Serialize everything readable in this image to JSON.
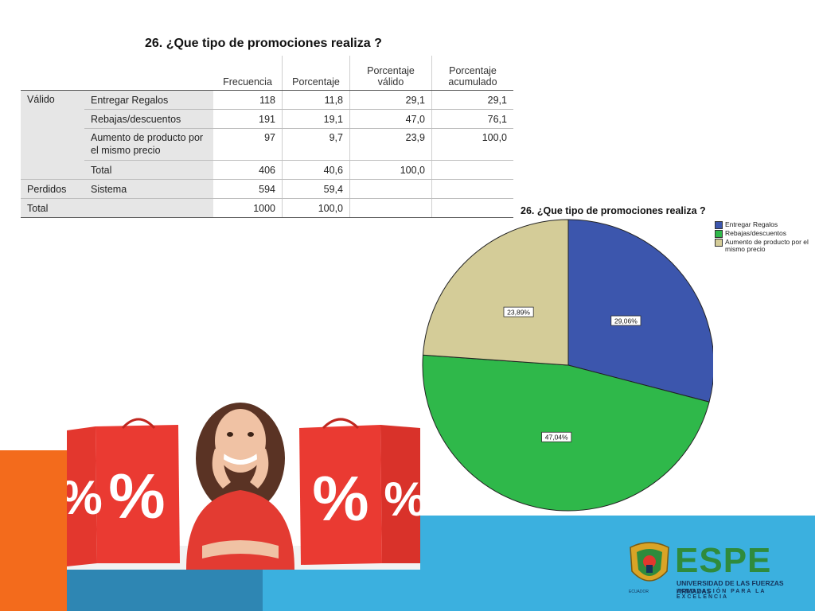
{
  "table": {
    "title": "26. ¿Que tipo de promociones realiza ?",
    "headers": [
      "Frecuencia",
      "Porcentaje",
      "Porcentaje válido",
      "Porcentaje acumulado"
    ],
    "rows": [
      {
        "group": "Válido",
        "category": "Entregar Regalos",
        "freq": "118",
        "pct": "11,8",
        "valid": "29,1",
        "cum": "29,1"
      },
      {
        "group": "",
        "category": "Rebajas/descuentos",
        "freq": "191",
        "pct": "19,1",
        "valid": "47,0",
        "cum": "76,1"
      },
      {
        "group": "",
        "category": "Aumento de producto por el mismo precio",
        "freq": "97",
        "pct": "9,7",
        "valid": "23,9",
        "cum": "100,0"
      },
      {
        "group": "",
        "category": "Total",
        "freq": "406",
        "pct": "40,6",
        "valid": "100,0",
        "cum": ""
      },
      {
        "group": "Perdidos",
        "category": "Sistema",
        "freq": "594",
        "pct": "59,4",
        "valid": "",
        "cum": ""
      },
      {
        "group": "Total",
        "category": "",
        "freq": "1000",
        "pct": "100,0",
        "valid": "",
        "cum": ""
      }
    ]
  },
  "chart_data": {
    "type": "pie",
    "title": "26. ¿Que tipo de promociones realiza ?",
    "categories": [
      "Entregar Regalos",
      "Rebajas/descuentos",
      "Aumento de producto por el mismo precio"
    ],
    "values": [
      29.06,
      47.04,
      23.89
    ],
    "data_labels": [
      "29,06%",
      "47,04%",
      "23,89%"
    ],
    "colors": [
      "#3c56ad",
      "#2fb84a",
      "#d4cc98"
    ],
    "legend_position": "top-right",
    "start_angle_deg": 0,
    "direction": "clockwise"
  },
  "logo": {
    "name": "ESPE",
    "university": "UNIVERSIDAD DE LAS FUERZAS ARMADAS",
    "motto": "INNOVACIÓN PARA LA EXCELENCIA",
    "sub": "ECUADOR"
  }
}
